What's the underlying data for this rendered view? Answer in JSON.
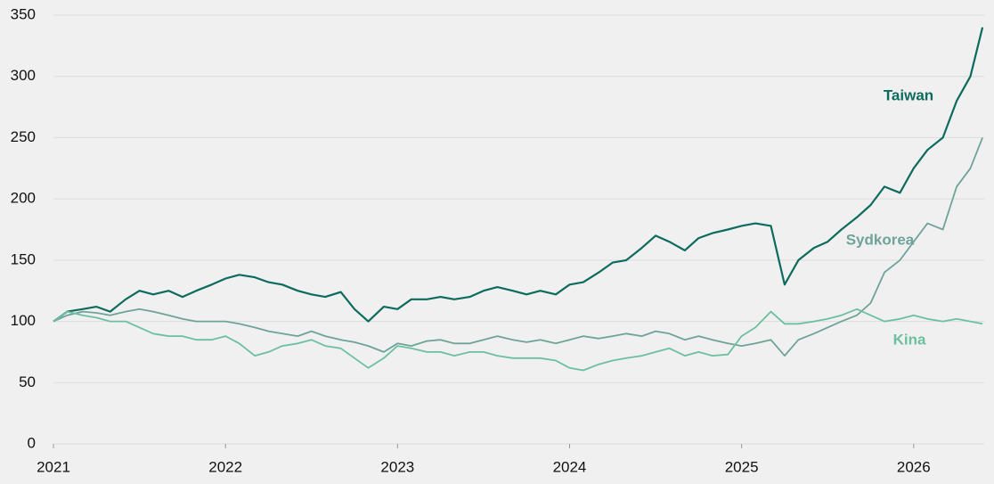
{
  "chart_data": {
    "type": "line",
    "x": [
      2021,
      2021.08,
      2021.17,
      2021.25,
      2021.33,
      2021.42,
      2021.5,
      2021.58,
      2021.67,
      2021.75,
      2021.83,
      2021.92,
      2022,
      2022.08,
      2022.17,
      2022.25,
      2022.33,
      2022.42,
      2022.5,
      2022.58,
      2022.67,
      2022.75,
      2022.83,
      2022.92,
      2023,
      2023.08,
      2023.17,
      2023.25,
      2023.33,
      2023.42,
      2023.5,
      2023.58,
      2023.67,
      2023.75,
      2023.83,
      2023.92,
      2024,
      2024.08,
      2024.17,
      2024.25,
      2024.33,
      2024.42,
      2024.5,
      2024.58,
      2024.67,
      2024.75,
      2024.83,
      2024.92,
      2025,
      2025.08,
      2025.17,
      2025.25,
      2025.33,
      2025.42,
      2025.5,
      2025.58,
      2025.67,
      2025.75,
      2025.83,
      2025.92,
      2026,
      2026.08,
      2026.17,
      2026.25,
      2026.33,
      2026.4
    ],
    "series": [
      {
        "name": "Taiwan",
        "color": "#0d6b5e",
        "values": [
          100,
          108,
          110,
          112,
          108,
          118,
          125,
          122,
          125,
          120,
          125,
          130,
          135,
          138,
          136,
          132,
          130,
          125,
          122,
          120,
          124,
          110,
          100,
          112,
          110,
          118,
          118,
          120,
          118,
          120,
          125,
          128,
          125,
          122,
          125,
          122,
          130,
          132,
          140,
          148,
          150,
          160,
          170,
          165,
          158,
          168,
          172,
          175,
          178,
          180,
          178,
          130,
          150,
          160,
          165,
          175,
          185,
          195,
          210,
          205,
          225,
          240,
          250,
          280,
          300,
          340
        ]
      },
      {
        "name": "Sydkorea",
        "color": "#6fa39a",
        "values": [
          100,
          105,
          108,
          107,
          105,
          108,
          110,
          108,
          105,
          102,
          100,
          100,
          100,
          98,
          95,
          92,
          90,
          88,
          92,
          88,
          85,
          83,
          80,
          75,
          82,
          80,
          84,
          85,
          82,
          82,
          85,
          88,
          85,
          83,
          85,
          82,
          85,
          88,
          86,
          88,
          90,
          88,
          92,
          90,
          85,
          88,
          85,
          82,
          80,
          82,
          85,
          72,
          85,
          90,
          95,
          100,
          105,
          115,
          140,
          150,
          165,
          180,
          175,
          210,
          225,
          250
        ]
      },
      {
        "name": "Kina",
        "color": "#6cc0a0",
        "values": [
          100,
          108,
          105,
          103,
          100,
          100,
          95,
          90,
          88,
          88,
          85,
          85,
          88,
          82,
          72,
          75,
          80,
          82,
          85,
          80,
          78,
          70,
          62,
          70,
          80,
          78,
          75,
          75,
          72,
          75,
          75,
          72,
          70,
          70,
          70,
          68,
          62,
          60,
          65,
          68,
          70,
          72,
          75,
          78,
          72,
          75,
          72,
          73,
          88,
          95,
          108,
          98,
          98,
          100,
          102,
          105,
          110,
          105,
          100,
          102,
          105,
          102,
          100,
          102,
          100,
          98
        ]
      }
    ],
    "xlim": [
      2021,
      2026.41
    ],
    "xticks": [
      2021,
      2022,
      2023,
      2024,
      2025,
      2026
    ],
    "ylim": [
      0,
      350
    ],
    "yticks": [
      0,
      50,
      100,
      150,
      200,
      250,
      300,
      350
    ],
    "grid": true
  }
}
